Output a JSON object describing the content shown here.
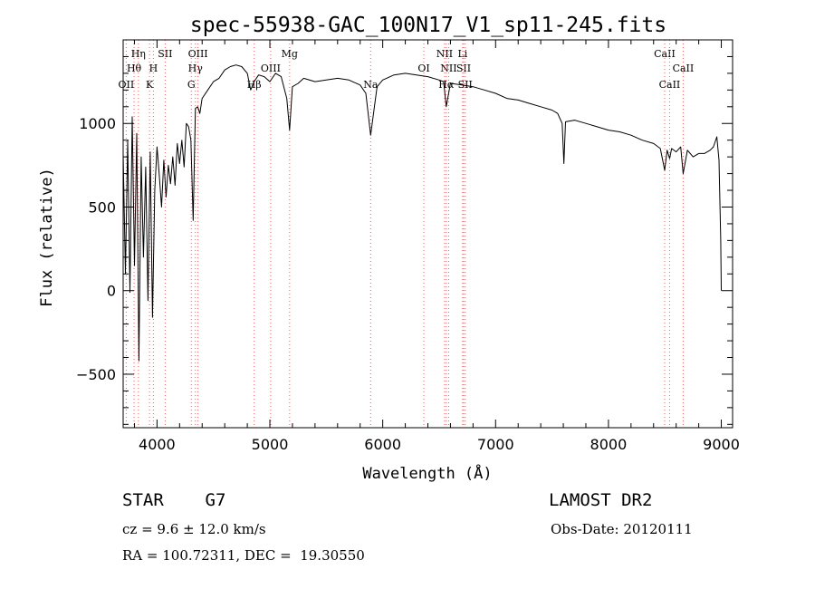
{
  "chart_data": {
    "type": "line",
    "title": "spec-55938-GAC_100N17_V1_sp11-245.fits",
    "xlabel": "Wavelength (Å)",
    "ylabel": "Flux (relative)",
    "xlim": [
      3700,
      9100
    ],
    "ylim": [
      -820,
      1500
    ],
    "xticks": [
      4000,
      5000,
      6000,
      7000,
      8000,
      9000
    ],
    "xtick_labels": [
      "4000",
      "5000",
      "6000",
      "7000",
      "8000",
      "9000"
    ],
    "yticks": [
      -500,
      0,
      500,
      1000
    ],
    "ytick_labels": [
      "−500",
      "0",
      "500",
      "1000"
    ],
    "grid": false,
    "line_color": "#000000",
    "marker_color": "#e06666",
    "line_markers": [
      {
        "label": "Hη",
        "wavelength": 3835,
        "row": 1
      },
      {
        "label": "SII",
        "wavelength": 4072,
        "row": 1
      },
      {
        "label": "OIII",
        "wavelength": 4363,
        "row": 1
      },
      {
        "label": "Mg",
        "wavelength": 5175,
        "row": 1
      },
      {
        "label": "NII",
        "wavelength": 6548,
        "row": 1
      },
      {
        "label": "Li",
        "wavelength": 6708,
        "row": 1
      },
      {
        "label": "CaII",
        "wavelength": 8498,
        "row": 1
      },
      {
        "label": "Hθ",
        "wavelength": 3797,
        "row": 2
      },
      {
        "label": "H",
        "wavelength": 3968,
        "row": 2
      },
      {
        "label": "Hγ",
        "wavelength": 4340,
        "row": 2
      },
      {
        "label": "OIII",
        "wavelength": 5007,
        "row": 2
      },
      {
        "label": "OI",
        "wavelength": 6364,
        "row": 2
      },
      {
        "label": "NII",
        "wavelength": 6584,
        "row": 2
      },
      {
        "label": "SII",
        "wavelength": 6717,
        "row": 2
      },
      {
        "label": "CaII",
        "wavelength": 8662,
        "row": 2
      },
      {
        "label": "OII",
        "wavelength": 3727,
        "row": 3
      },
      {
        "label": "K",
        "wavelength": 3934,
        "row": 3
      },
      {
        "label": "G",
        "wavelength": 4304,
        "row": 3
      },
      {
        "label": "Hβ",
        "wavelength": 4861,
        "row": 3
      },
      {
        "label": "Na",
        "wavelength": 5893,
        "row": 3
      },
      {
        "label": "Hα",
        "wavelength": 6563,
        "row": 3
      },
      {
        "label": "SII",
        "wavelength": 6731,
        "row": 3
      },
      {
        "label": "CaII",
        "wavelength": 8542,
        "row": 3
      }
    ],
    "series": [
      {
        "x": [
          3700,
          3720,
          3740,
          3760,
          3780,
          3800,
          3820,
          3840,
          3860,
          3880,
          3900,
          3920,
          3940,
          3960,
          3980,
          4000,
          4020,
          4040,
          4060,
          4080,
          4100,
          4120,
          4140,
          4160,
          4180,
          4200,
          4220,
          4240,
          4260,
          4280,
          4300,
          4320,
          4340,
          4360,
          4380,
          4400,
          4450,
          4500,
          4550,
          4600,
          4650,
          4700,
          4750,
          4800,
          4830,
          4860,
          4900,
          4950,
          5000,
          5050,
          5100,
          5150,
          5175,
          5200,
          5250,
          5300,
          5400,
          5500,
          5600,
          5700,
          5800,
          5850,
          5893,
          5950,
          6000,
          6100,
          6200,
          6300,
          6400,
          6500,
          6540,
          6563,
          6600,
          6700,
          6800,
          6900,
          7000,
          7100,
          7200,
          7300,
          7400,
          7500,
          7550,
          7590,
          7605,
          7620,
          7700,
          7800,
          7900,
          8000,
          8100,
          8200,
          8300,
          8400,
          8460,
          8498,
          8520,
          8542,
          8560,
          8600,
          8640,
          8662,
          8700,
          8750,
          8800,
          8850,
          8900,
          8930,
          8960,
          8980,
          8995,
          9000
        ],
        "y": [
          820,
          100,
          900,
          -10,
          1040,
          150,
          940,
          -420,
          800,
          200,
          740,
          -60,
          830,
          -160,
          600,
          860,
          690,
          500,
          780,
          560,
          750,
          640,
          800,
          630,
          880,
          760,
          900,
          740,
          1000,
          980,
          900,
          420,
          1090,
          1100,
          1060,
          1150,
          1200,
          1250,
          1270,
          1320,
          1340,
          1350,
          1340,
          1300,
          1200,
          1250,
          1290,
          1280,
          1250,
          1300,
          1280,
          1150,
          960,
          1220,
          1240,
          1270,
          1250,
          1260,
          1270,
          1260,
          1230,
          1180,
          930,
          1220,
          1260,
          1290,
          1300,
          1290,
          1280,
          1260,
          1250,
          1100,
          1240,
          1230,
          1220,
          1200,
          1180,
          1150,
          1140,
          1120,
          1100,
          1080,
          1060,
          1000,
          760,
          1010,
          1020,
          1000,
          980,
          960,
          950,
          930,
          900,
          880,
          850,
          720,
          840,
          790,
          850,
          830,
          860,
          700,
          840,
          800,
          820,
          820,
          840,
          860,
          920,
          780,
          300,
          0
        ]
      }
    ]
  },
  "info": {
    "class_line": "STAR    G7",
    "survey": "LAMOST DR2",
    "cz": "cz = 9.6 ± 12.0 km/s",
    "obs_date": "Obs-Date: 20120111",
    "coords": "RA = 100.72311, DEC =  19.30550"
  }
}
